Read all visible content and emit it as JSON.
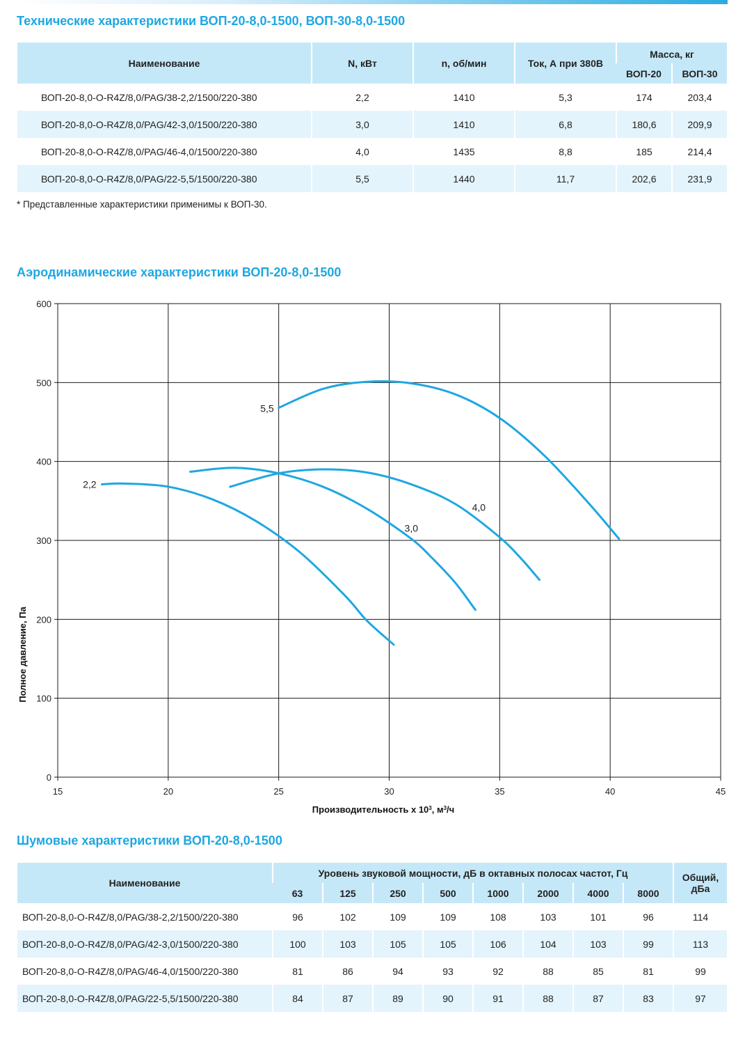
{
  "tech": {
    "title": "Технические характеристики ВОП-20-8,0-1500, ВОП-30-8,0-1500",
    "headers": {
      "name": "Наименование",
      "power": "N, кВт",
      "speed": "n, об/мин",
      "current": "Ток, А при 380В",
      "mass": "Масса, кг",
      "mass20": "ВОП-20",
      "mass30": "ВОП-30"
    },
    "rows": [
      {
        "name": "ВОП-20-8,0-О-R4Z/8,0/PAG/38-2,2/1500/220-380",
        "power": "2,2",
        "speed": "1410",
        "current": "5,3",
        "m20": "174",
        "m30": "203,4"
      },
      {
        "name": "ВОП-20-8,0-О-R4Z/8,0/PAG/42-3,0/1500/220-380",
        "power": "3,0",
        "speed": "1410",
        "current": "6,8",
        "m20": "180,6",
        "m30": "209,9"
      },
      {
        "name": "ВОП-20-8,0-О-R4Z/8,0/PAG/46-4,0/1500/220-380",
        "power": "4,0",
        "speed": "1435",
        "current": "8,8",
        "m20": "185",
        "m30": "214,4"
      },
      {
        "name": "ВОП-20-8,0-О-R4Z/8,0/PAG/22-5,5/1500/220-380",
        "power": "5,5",
        "speed": "1440",
        "current": "11,7",
        "m20": "202,6",
        "m30": "231,9"
      }
    ],
    "footnote": "* Представленные характеристики применимы к ВОП-30."
  },
  "aero": {
    "title": "Аэродинамические характеристики ВОП-20-8,0-1500"
  },
  "chart_data": {
    "type": "line",
    "xlabel": "Производительность х 10³, м³/ч",
    "ylabel": "Полное давление, Па",
    "xlim": [
      15,
      45
    ],
    "ylim": [
      0,
      600
    ],
    "xticks": [
      15,
      20,
      25,
      30,
      35,
      40,
      45
    ],
    "yticks": [
      0,
      100,
      200,
      300,
      400,
      500,
      600
    ],
    "grid": true,
    "color": "#1ea7e1",
    "series": [
      {
        "name": "2,2",
        "x": [
          17,
          18,
          20,
          22,
          24,
          26,
          28,
          29,
          30.2
        ],
        "y": [
          371,
          372,
          368,
          352,
          324,
          284,
          230,
          198,
          168
        ]
      },
      {
        "name": "3,0",
        "x": [
          21,
          23,
          25,
          27,
          29,
          31,
          32,
          33,
          33.9
        ],
        "y": [
          387,
          392,
          385,
          368,
          340,
          302,
          276,
          246,
          212
        ]
      },
      {
        "name": "4,0",
        "x": [
          22.8,
          25,
          27,
          29,
          31,
          33,
          35,
          36,
          36.8
        ],
        "y": [
          368,
          385,
          390,
          386,
          371,
          346,
          304,
          276,
          250
        ]
      },
      {
        "name": "5,5",
        "x": [
          25,
          27,
          29,
          31,
          33,
          35,
          37,
          39,
          40.4
        ],
        "y": [
          468,
          492,
          501,
          499,
          485,
          455,
          408,
          348,
          302
        ]
      }
    ]
  },
  "noise": {
    "title": "Шумовые характеристики ВОП-20-8,0-1500",
    "headers": {
      "name": "Наименование",
      "level": "Уровень звуковой мощности, дБ в октавных полосах частот, Гц",
      "total": "Общий, дБа"
    },
    "bands": [
      "63",
      "125",
      "250",
      "500",
      "1000",
      "2000",
      "4000",
      "8000"
    ],
    "rows": [
      {
        "name": "ВОП-20-8,0-О-R4Z/8,0/PAG/38-2,2/1500/220-380",
        "values": [
          "96",
          "102",
          "109",
          "109",
          "108",
          "103",
          "101",
          "96"
        ],
        "total": "114"
      },
      {
        "name": "ВОП-20-8,0-О-R4Z/8,0/PAG/42-3,0/1500/220-380",
        "values": [
          "100",
          "103",
          "105",
          "105",
          "106",
          "104",
          "103",
          "99"
        ],
        "total": "113"
      },
      {
        "name": "ВОП-20-8,0-О-R4Z/8,0/PAG/46-4,0/1500/220-380",
        "values": [
          "81",
          "86",
          "94",
          "93",
          "92",
          "88",
          "85",
          "81"
        ],
        "total": "99"
      },
      {
        "name": "ВОП-20-8,0-О-R4Z/8,0/PAG/22-5,5/1500/220-380",
        "values": [
          "84",
          "87",
          "89",
          "90",
          "91",
          "88",
          "87",
          "83"
        ],
        "total": "97"
      }
    ]
  }
}
